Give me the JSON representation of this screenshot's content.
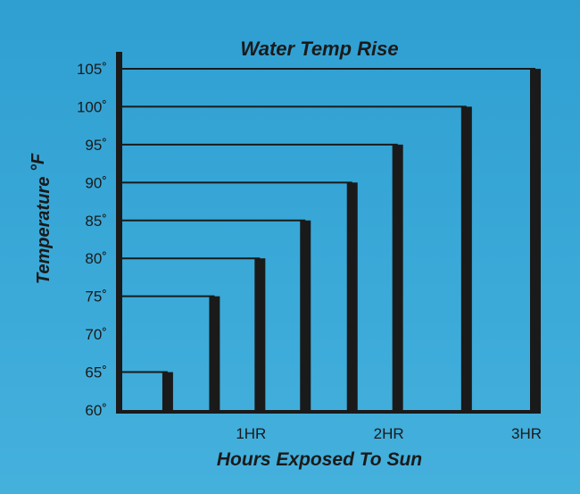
{
  "chart_data": {
    "type": "bar",
    "title": "Water Temp Rise",
    "xlabel": "Hours Exposed To Sun",
    "ylabel": "Temperature °F",
    "ylabel_main": "Temperature ",
    "ylabel_unit": "°F",
    "x_ticks": [
      {
        "label": "1HR",
        "value": 1
      },
      {
        "label": "2HR",
        "value": 2
      },
      {
        "label": "3HR",
        "value": 3
      }
    ],
    "y_tick_values": [
      60,
      65,
      70,
      75,
      80,
      85,
      90,
      95,
      100,
      105
    ],
    "y_tick_labels": [
      "60˚",
      "65˚",
      "70˚",
      "75˚",
      "80˚",
      "85˚",
      "90˚",
      "95˚",
      "100˚",
      "105˚"
    ],
    "xlim": [
      0,
      3
    ],
    "ylim": [
      60,
      107
    ],
    "bars": [
      {
        "hours": 0.33,
        "temp": 65
      },
      {
        "hours": 0.67,
        "temp": 75
      },
      {
        "hours": 1.0,
        "temp": 80
      },
      {
        "hours": 1.33,
        "temp": 85
      },
      {
        "hours": 1.67,
        "temp": 90
      },
      {
        "hours": 2.0,
        "temp": 95
      },
      {
        "hours": 2.5,
        "temp": 100
      },
      {
        "hours": 3.0,
        "temp": 105
      }
    ],
    "colors": {
      "bars": "#1a1a1a",
      "background": "#3aa7d6"
    }
  }
}
